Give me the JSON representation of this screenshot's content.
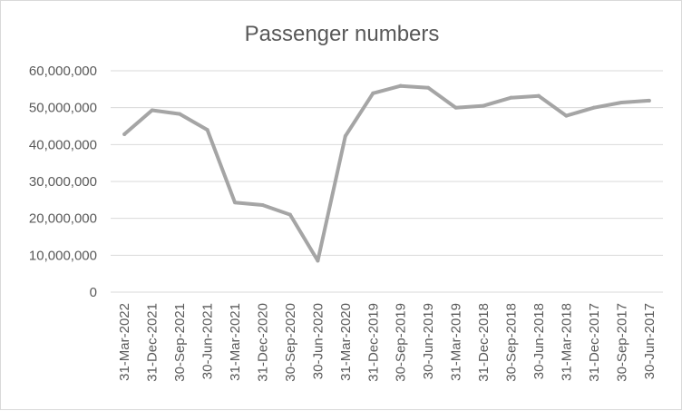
{
  "chart_data": {
    "type": "line",
    "title": "Passenger numbers",
    "xlabel": "",
    "ylabel": "",
    "ylim": [
      0,
      60000000
    ],
    "yticks": [
      0,
      10000000,
      20000000,
      30000000,
      40000000,
      50000000,
      60000000
    ],
    "ytick_labels": [
      "0",
      "10,000,000",
      "20,000,000",
      "30,000,000",
      "40,000,000",
      "50,000,000",
      "60,000,000"
    ],
    "grid": true,
    "legend": "none",
    "line_color": "#a5a5a5",
    "categories": [
      "31-Mar-2022",
      "31-Dec-2021",
      "30-Sep-2021",
      "30-Jun-2021",
      "31-Mar-2021",
      "31-Dec-2020",
      "30-Sep-2020",
      "30-Jun-2020",
      "31-Mar-2020",
      "31-Dec-2019",
      "30-Sep-2019",
      "30-Jun-2019",
      "31-Mar-2019",
      "31-Dec-2018",
      "30-Sep-2018",
      "30-Jun-2018",
      "31-Mar-2018",
      "31-Dec-2017",
      "30-Sep-2017",
      "30-Jun-2017"
    ],
    "series": [
      {
        "values": [
          42800000,
          49300000,
          48300000,
          44000000,
          24300000,
          23600000,
          21000000,
          8500000,
          42300000,
          53900000,
          55900000,
          55400000,
          50000000,
          50500000,
          52700000,
          53200000,
          47800000,
          50000000,
          51400000,
          51900000
        ]
      }
    ]
  }
}
